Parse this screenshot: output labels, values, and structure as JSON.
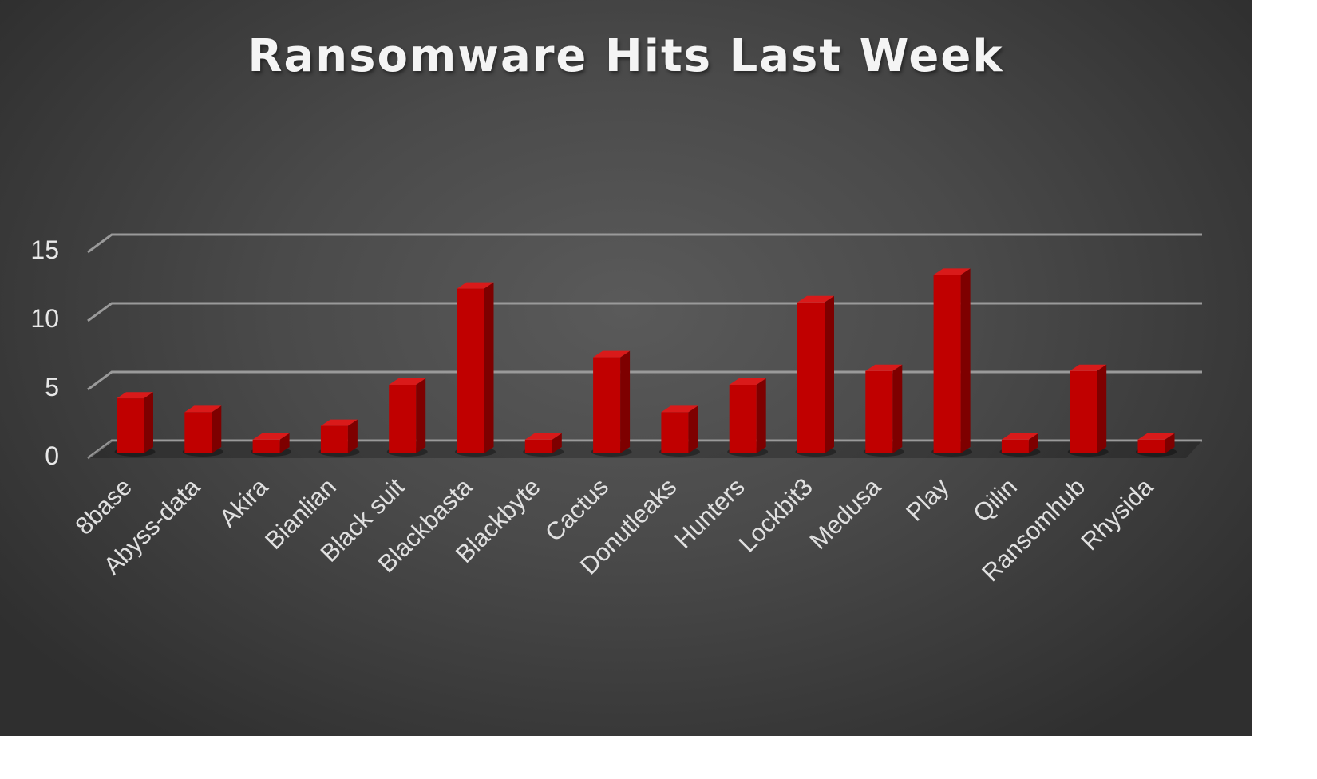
{
  "chart_data": {
    "type": "bar",
    "style": "3d-column",
    "title": "Ransomware Hits Last Week",
    "xlabel": "",
    "ylabel": "",
    "ylim": [
      0,
      15
    ],
    "yticks": [
      0,
      5,
      10,
      15
    ],
    "grid": true,
    "legend": "none",
    "categories": [
      "8base",
      "Abyss-data",
      "Akira",
      "Bianlian",
      "Black suit",
      "Blackbasta",
      "Blackbyte",
      "Cactus",
      "Donutleaks",
      "Hunters",
      "Lockbit3",
      "Medusa",
      "Play",
      "Qilin",
      "Ransomhub",
      "Rhysida"
    ],
    "values": [
      4,
      3,
      1,
      2,
      5,
      12,
      1,
      7,
      3,
      5,
      11,
      6,
      13,
      1,
      6,
      1
    ],
    "colors": {
      "bar_front": "#c00000",
      "bar_side": "#7e0000",
      "bar_top": "#d91a1a",
      "gridline": "#9a9a9a",
      "background": "#4a4a4a",
      "text": "#e8e8e8"
    }
  }
}
